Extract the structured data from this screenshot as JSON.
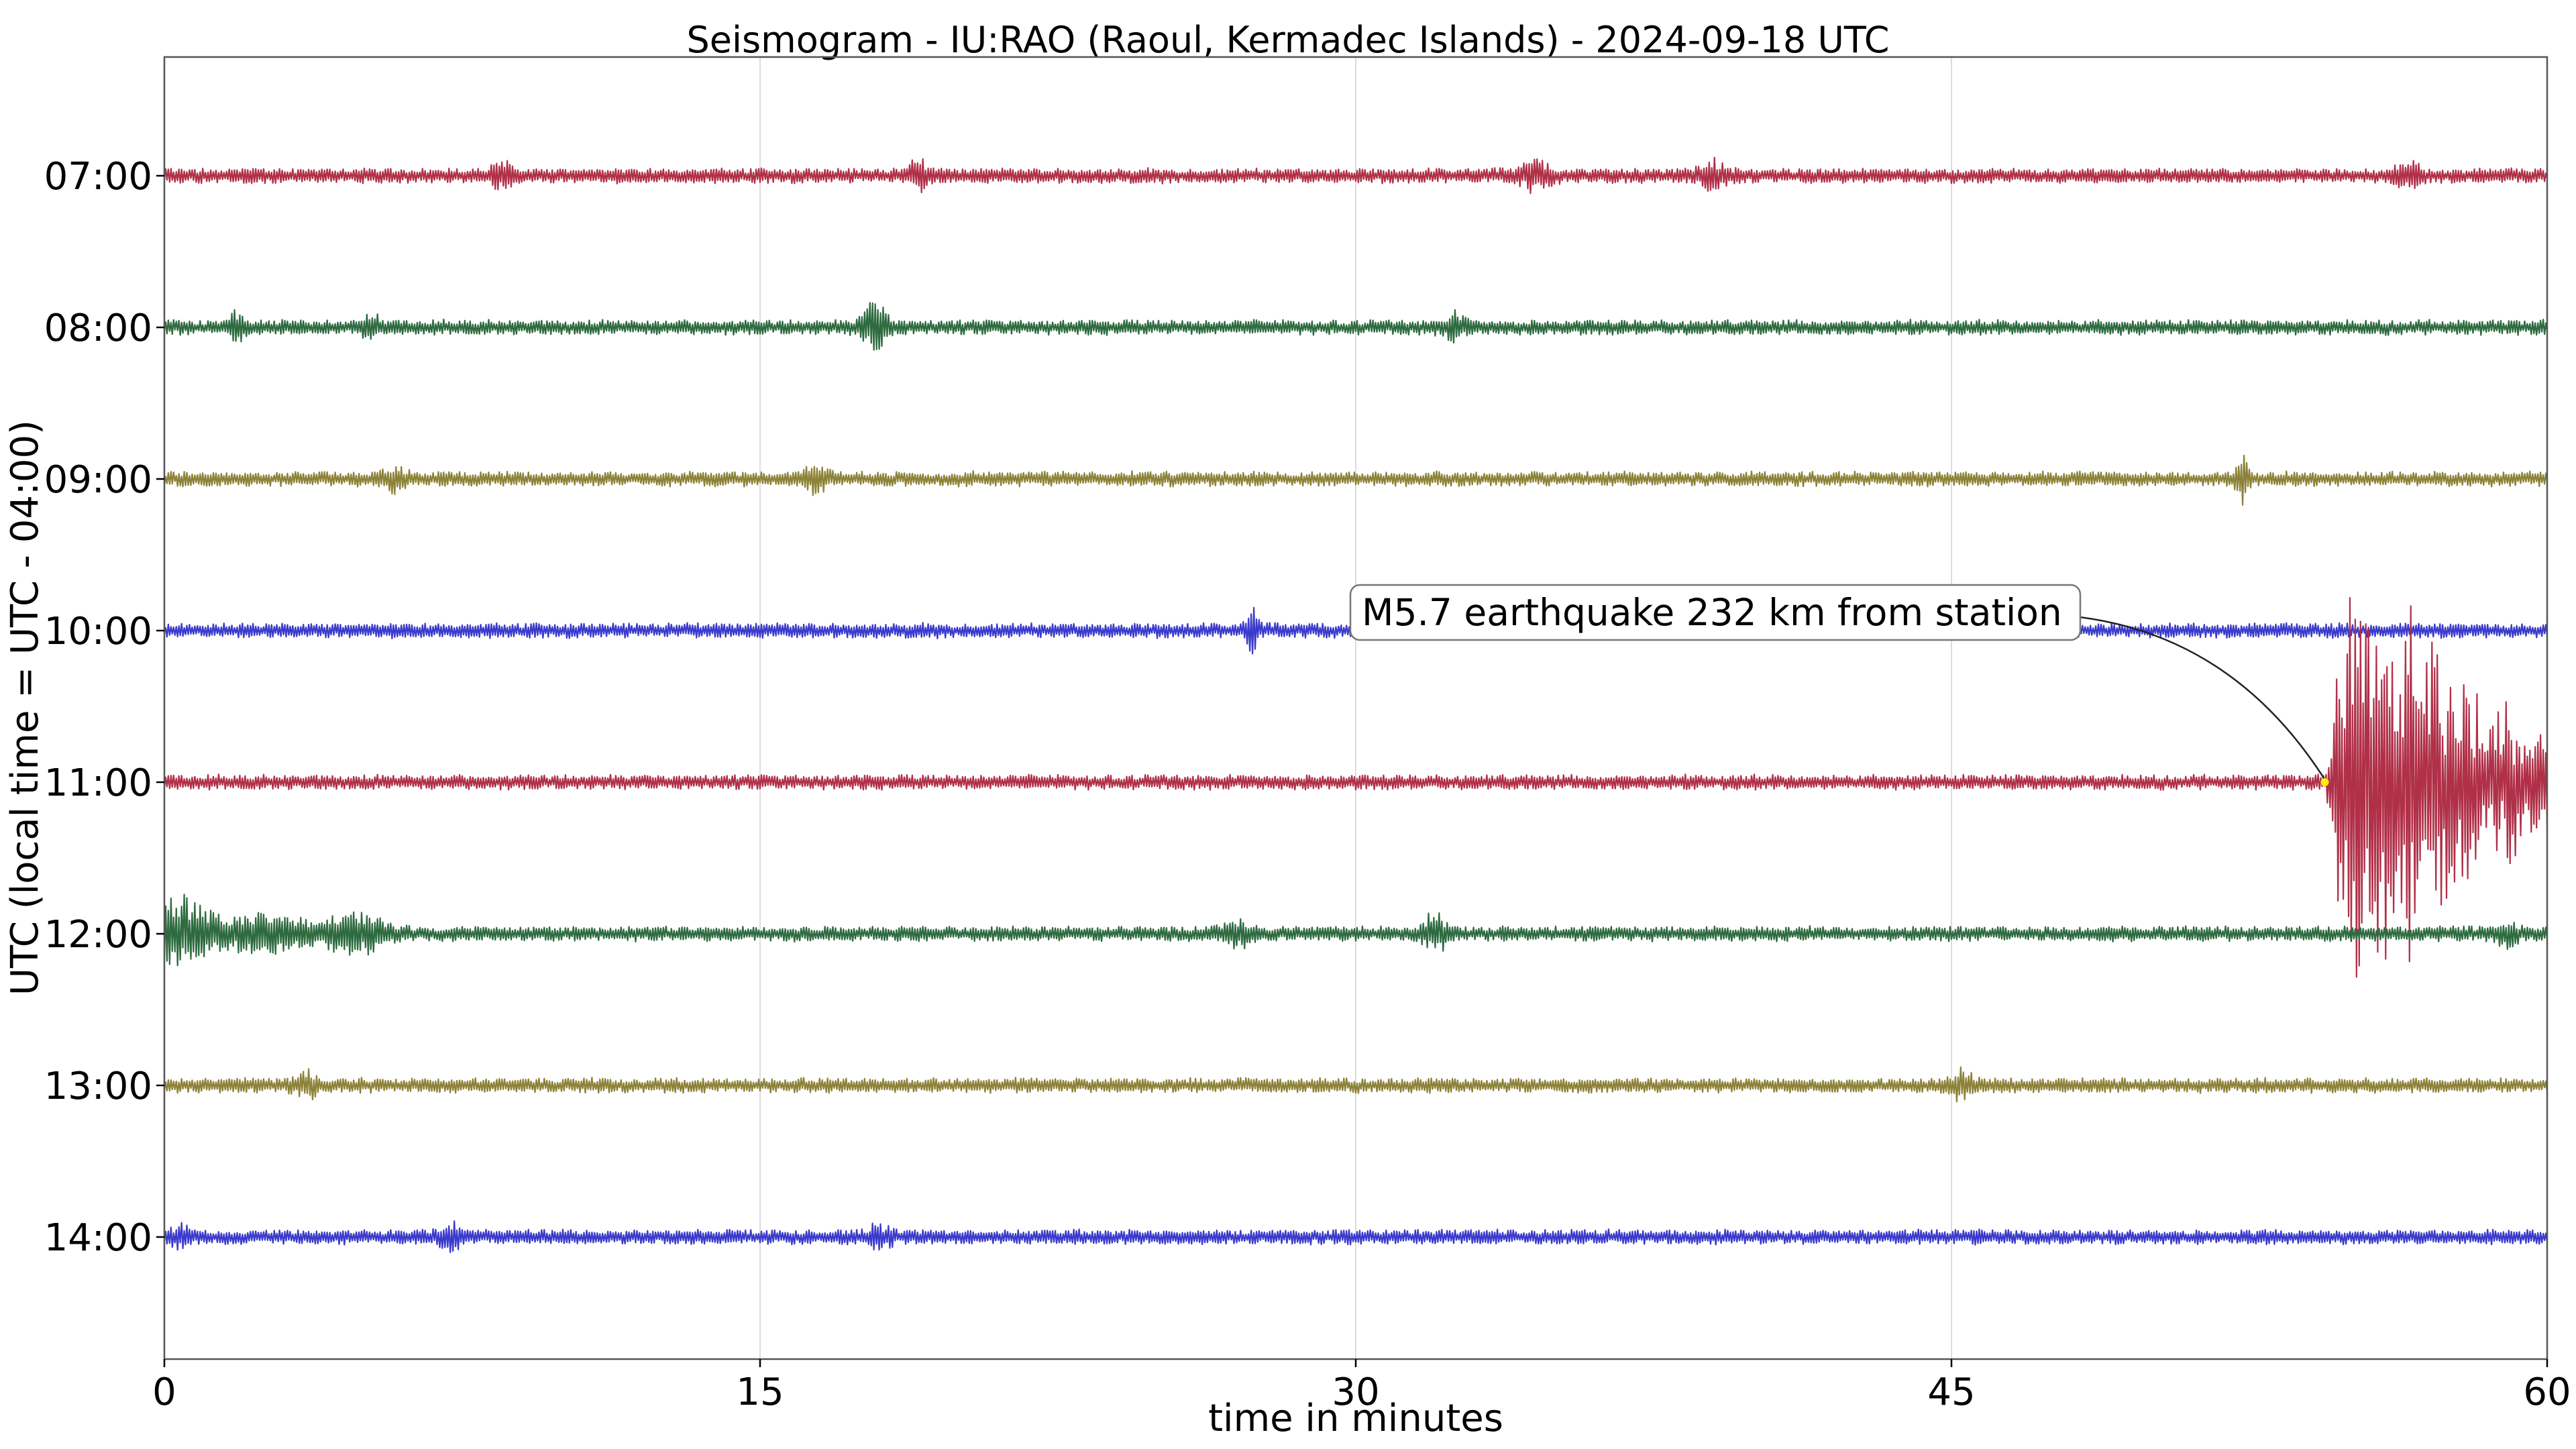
{
  "chart_data": {
    "type": "line",
    "title": "Seismogram - IU:RAO (Raoul, Kermadec Islands) - 2024-09-18 UTC",
    "xlabel": "time in minutes",
    "ylabel": "UTC (local time = UTC - 04:00)",
    "xlim": [
      0,
      60
    ],
    "x_ticks": [
      0,
      15,
      30,
      45,
      60
    ],
    "x_tick_labels": [
      "0",
      "15",
      "30",
      "45",
      "60"
    ],
    "grid": "vertical",
    "rows": [
      {
        "label": "07:00",
        "color": "#b03048",
        "bursts": [
          [
            8.5,
            0.3,
            1.4
          ],
          [
            19,
            0.3,
            1.4
          ],
          [
            34.5,
            0.4,
            1.5
          ],
          [
            39,
            0.4,
            1.4
          ],
          [
            56.5,
            0.3,
            1.5
          ]
        ]
      },
      {
        "label": "08:00",
        "color": "#2e6b40",
        "bursts": [
          [
            1.8,
            0.2,
            1.6
          ],
          [
            5.2,
            0.2,
            1.8
          ],
          [
            17.9,
            0.35,
            3.0
          ],
          [
            32.5,
            0.3,
            1.3
          ]
        ]
      },
      {
        "label": "09:00",
        "color": "#8c8238",
        "bursts": [
          [
            5.8,
            0.3,
            1.5
          ],
          [
            16.4,
            0.3,
            1.4
          ],
          [
            52.3,
            0.15,
            3.6
          ]
        ]
      },
      {
        "label": "10:00",
        "color": "#3a3acc",
        "bursts": [
          [
            27.4,
            0.15,
            2.8
          ]
        ]
      },
      {
        "label": "11:00",
        "color": "#b03048",
        "bursts": []
      },
      {
        "label": "12:00",
        "color": "#2e6b40",
        "bursts": [
          [
            0.2,
            1.3,
            4.5
          ],
          [
            2.5,
            1.5,
            2.2
          ],
          [
            4.8,
            0.8,
            2.3
          ],
          [
            27,
            0.4,
            1.5
          ],
          [
            32,
            0.3,
            2.2
          ],
          [
            59,
            0.3,
            1.3
          ]
        ]
      },
      {
        "label": "13:00",
        "color": "#8c8238",
        "bursts": [
          [
            3.6,
            0.3,
            1.4
          ],
          [
            45.3,
            0.3,
            1.5
          ]
        ]
      },
      {
        "label": "14:00",
        "color": "#3a3acc",
        "bursts": [
          [
            0.4,
            0.2,
            1.5
          ],
          [
            7.2,
            0.3,
            1.4
          ],
          [
            18,
            0.3,
            1.2
          ]
        ]
      }
    ],
    "event": {
      "row": "11:00",
      "onset_minute": 54.4,
      "peak_minute": 56,
      "peak_amplitude_rows": 1.6,
      "decay_minutes": 3.2
    },
    "annotations": [
      {
        "text": "M5.7 earthquake 232 km from station",
        "row": "11:00",
        "minute": 54.4,
        "marker_color": "#ffee00"
      }
    ]
  }
}
